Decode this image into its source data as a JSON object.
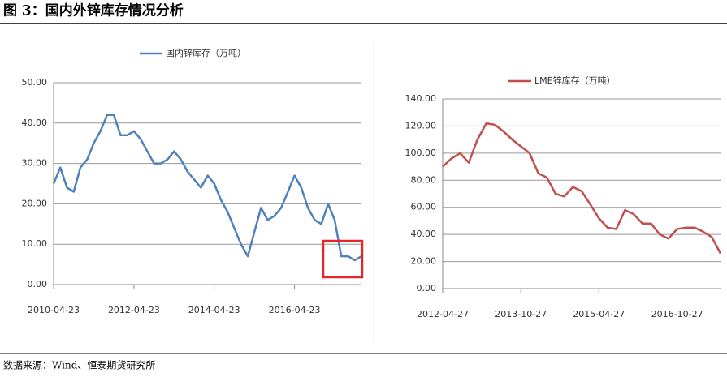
{
  "title": "图 3：国内外锌库存情况分析",
  "source": "数据来源：Wind、恒泰期货研究所",
  "chart_data": [
    {
      "type": "line",
      "x": [
        "2010-04-23",
        "2010-06-23",
        "2010-08-23",
        "2010-10-23",
        "2010-12-23",
        "2011-02-23",
        "2011-04-23",
        "2011-06-23",
        "2011-08-23",
        "2011-10-23",
        "2011-12-23",
        "2012-02-23",
        "2012-04-23",
        "2012-06-23",
        "2012-08-23",
        "2012-10-23",
        "2012-12-23",
        "2013-02-23",
        "2013-04-23",
        "2013-06-23",
        "2013-08-23",
        "2013-10-23",
        "2013-12-23",
        "2014-02-23",
        "2014-04-23",
        "2014-06-23",
        "2014-08-23",
        "2014-10-23",
        "2014-12-23",
        "2015-02-23",
        "2015-04-23",
        "2015-06-23",
        "2015-08-23",
        "2015-10-23",
        "2015-12-23",
        "2016-02-23",
        "2016-04-23",
        "2016-06-23",
        "2016-08-23",
        "2016-10-23",
        "2016-12-23",
        "2017-02-23",
        "2017-04-23",
        "2017-06-23",
        "2017-08-23",
        "2017-10-23",
        "2017-12-23"
      ],
      "series": [
        {
          "name": "国内锌库存（万吨）",
          "color": "#4f81bd",
          "values": [
            25,
            29,
            24,
            23,
            29,
            31,
            35,
            38,
            42,
            42,
            37,
            37,
            38,
            36,
            33,
            30,
            30,
            31,
            33,
            31,
            28,
            26,
            24,
            27,
            25,
            21,
            18,
            14,
            10,
            7,
            13,
            19,
            16,
            17,
            19,
            23,
            27,
            24,
            19,
            16,
            15,
            20,
            16,
            7,
            7,
            6,
            7
          ]
        }
      ],
      "xlim": [
        "2010-04-23",
        "2017-12-23"
      ],
      "xticks": [
        "2010-04-23",
        "2012-04-23",
        "2014-04-23",
        "2016-04-23"
      ],
      "ylim": [
        0,
        50
      ],
      "yticks": [
        {
          "value": 0,
          "label": "0.00"
        },
        {
          "value": 10,
          "label": "10.00"
        },
        {
          "value": 20,
          "label": "20.00"
        },
        {
          "value": 30,
          "label": "30.00"
        },
        {
          "value": 40,
          "label": "40.00"
        },
        {
          "value": 50,
          "label": "50.00"
        }
      ],
      "grid": true
    },
    {
      "type": "line",
      "x": [
        "2012-04-27",
        "2012-06-27",
        "2012-08-27",
        "2012-10-27",
        "2012-12-27",
        "2013-02-27",
        "2013-04-27",
        "2013-06-27",
        "2013-08-27",
        "2013-10-27",
        "2013-12-27",
        "2014-02-27",
        "2014-04-27",
        "2014-06-27",
        "2014-08-27",
        "2014-10-27",
        "2014-12-27",
        "2015-02-27",
        "2015-04-27",
        "2015-06-27",
        "2015-08-27",
        "2015-10-27",
        "2015-12-27",
        "2016-02-27",
        "2016-04-27",
        "2016-06-27",
        "2016-08-27",
        "2016-10-27",
        "2016-12-27",
        "2017-02-27",
        "2017-04-27",
        "2017-06-27",
        "2017-08-27"
      ],
      "series": [
        {
          "name": "LME锌库存（万吨）",
          "color": "#c0504d",
          "values": [
            90,
            96,
            100,
            93,
            110,
            122,
            121,
            116,
            110,
            105,
            100,
            85,
            82,
            70,
            68,
            75,
            72,
            62,
            52,
            45,
            44,
            58,
            55,
            48,
            48,
            40,
            37,
            44,
            45,
            45,
            42,
            38,
            26
          ]
        }
      ],
      "xlim": [
        "2012-04-27",
        "2017-08-27"
      ],
      "xticks": [
        "2012-04-27",
        "2013-10-27",
        "2015-04-27",
        "2016-10-27"
      ],
      "ylim": [
        0,
        140
      ],
      "yticks": [
        {
          "value": 0,
          "label": "0.00"
        },
        {
          "value": 20,
          "label": "20.00"
        },
        {
          "value": 40,
          "label": "40.00"
        },
        {
          "value": 60,
          "label": "60.00"
        },
        {
          "value": 80,
          "label": "80.00"
        },
        {
          "value": 100,
          "label": "100.00"
        },
        {
          "value": 120,
          "label": "120.00"
        },
        {
          "value": 140,
          "label": "140.00"
        }
      ],
      "grid": true
    }
  ]
}
